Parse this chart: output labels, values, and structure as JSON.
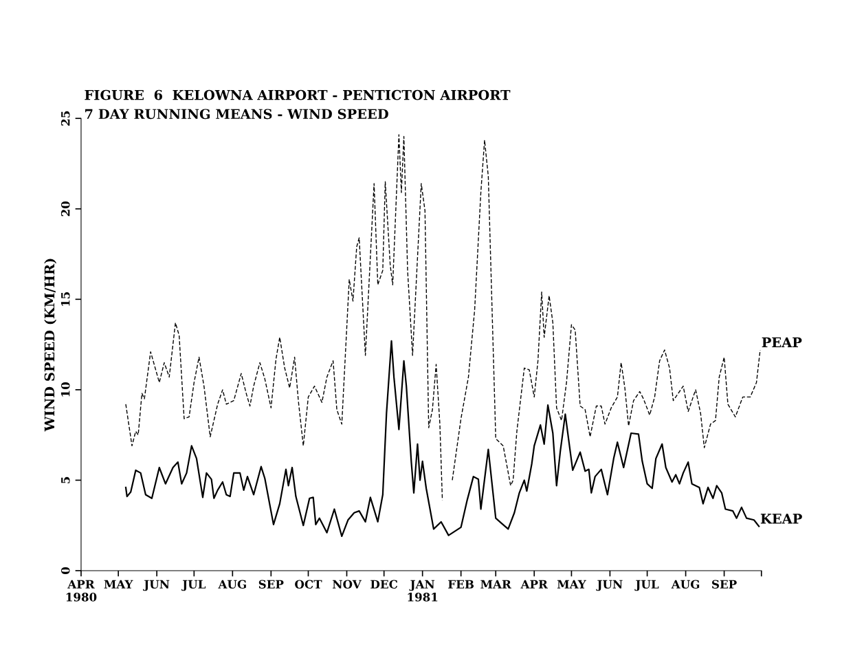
{
  "chart_data": {
    "type": "line",
    "title": "FIGURE  6  KELOWNA AIRPORT - PENTICTON AIRPORT\n7 DAY RUNNING MEANS - WIND SPEED",
    "ylabel": "WIND SPEED (KM/HR)",
    "xlim": [
      "1980-04-01",
      "1981-10-01"
    ],
    "ylim": [
      0,
      25
    ],
    "yticks": [
      0,
      5,
      10,
      15,
      20,
      25
    ],
    "xticks": [
      {
        "value": "1980-04-01",
        "label": "APR\n1980"
      },
      {
        "value": "1980-05-01",
        "label": "MAY"
      },
      {
        "value": "1980-06-01",
        "label": "JUN"
      },
      {
        "value": "1980-07-01",
        "label": "JUL"
      },
      {
        "value": "1980-08-01",
        "label": "AUG"
      },
      {
        "value": "1980-09-01",
        "label": "SEP"
      },
      {
        "value": "1980-10-01",
        "label": "OCT"
      },
      {
        "value": "1980-11-01",
        "label": "NOV"
      },
      {
        "value": "1980-12-01",
        "label": "DEC"
      },
      {
        "value": "1981-01-01",
        "label": "JAN\n1981"
      },
      {
        "value": "1981-02-01",
        "label": "FEB"
      },
      {
        "value": "1981-03-01",
        "label": "MAR"
      },
      {
        "value": "1981-04-01",
        "label": "APR"
      },
      {
        "value": "1981-05-01",
        "label": "MAY"
      },
      {
        "value": "1981-06-01",
        "label": "JUN"
      },
      {
        "value": "1981-07-01",
        "label": "JUL"
      },
      {
        "value": "1981-08-01",
        "label": "AUG"
      },
      {
        "value": "1981-09-01",
        "label": "SEP"
      },
      {
        "value": "1981-10-01",
        "label": null
      }
    ],
    "grid": false,
    "series": [
      {
        "name": "PEAP",
        "color": "#000000",
        "line_style": "dashed",
        "x": [
          "1980-05-07",
          "1980-05-12",
          "1980-05-15",
          "1980-05-17",
          "1980-05-20",
          "1980-05-22",
          "1980-05-27",
          "1980-06-03",
          "1980-06-07",
          "1980-06-11",
          "1980-06-16",
          "1980-06-19",
          "1980-06-23",
          "1980-06-27",
          "1980-07-01",
          "1980-07-05",
          "1980-07-09",
          "1980-07-14",
          "1980-07-20",
          "1980-07-24",
          "1980-07-27",
          "1980-08-02",
          "1980-08-08",
          "1980-08-12",
          "1980-08-15",
          "1980-08-18",
          "1980-08-23",
          "1980-08-27",
          "1980-09-01",
          "1980-09-05",
          "1980-09-08",
          "1980-09-12",
          "1980-09-16",
          "1980-09-20",
          "1980-09-23",
          "1980-09-27",
          "1980-10-01",
          "1980-10-06",
          "1980-10-12",
          "1980-10-16",
          "1980-10-21",
          "1980-10-24",
          "1980-10-28",
          "1980-11-03",
          "1980-11-06",
          "1980-11-09",
          "1980-11-11",
          "1980-11-16",
          "1980-11-23",
          "1980-11-26",
          "1980-11-30",
          "1980-12-02",
          "1980-12-06",
          "1980-12-08",
          "1980-12-13",
          "1980-12-15",
          "1980-12-17",
          "1980-12-20",
          "1980-12-24",
          "1980-12-31",
          "1981-01-03",
          "1981-01-06",
          "1981-01-09",
          "1981-01-12",
          "1981-01-15",
          "1981-01-17",
          "1981-01-21",
          "1981-01-25",
          "1981-02-01",
          "1981-02-07",
          "1981-02-12",
          "1981-02-17",
          "1981-02-20",
          "1981-02-23",
          "1981-03-01",
          "1981-03-07",
          "1981-03-13",
          "1981-03-15",
          "1981-03-18",
          "1981-03-24",
          "1981-03-28",
          "1981-04-01",
          "1981-04-04",
          "1981-04-07",
          "1981-04-09",
          "1981-04-13",
          "1981-04-16",
          "1981-04-19",
          "1981-04-23",
          "1981-04-27",
          "1981-05-01",
          "1981-05-04",
          "1981-05-08",
          "1981-05-12",
          "1981-05-16",
          "1981-05-21",
          "1981-05-25",
          "1981-05-28",
          "1981-06-02",
          "1981-06-07",
          "1981-06-10",
          "1981-06-13",
          "1981-06-16",
          "1981-06-20",
          "1981-06-25",
          "1981-06-28",
          "1981-07-03",
          "1981-07-07",
          "1981-07-11",
          "1981-07-15",
          "1981-07-19",
          "1981-07-22",
          "1981-07-30",
          "1981-08-03",
          "1981-08-09",
          "1981-08-13",
          "1981-08-16",
          "1981-08-21",
          "1981-08-25",
          "1981-08-28",
          "1981-09-01",
          "1981-09-04",
          "1981-09-10",
          "1981-09-16",
          "1981-09-22",
          "1981-09-27",
          "1981-09-30"
        ],
        "values": [
          9.2,
          6.9,
          7.7,
          7.5,
          9.8,
          9.5,
          12.1,
          10.4,
          11.5,
          10.7,
          13.7,
          13.0,
          8.4,
          8.5,
          10.4,
          11.8,
          10.2,
          7.4,
          9.2,
          10.0,
          9.2,
          9.4,
          10.9,
          9.8,
          9.1,
          10.2,
          11.5,
          10.6,
          9.0,
          11.7,
          12.9,
          11.2,
          10.1,
          11.8,
          9.4,
          6.9,
          9.6,
          10.2,
          9.3,
          10.7,
          11.6,
          8.9,
          8.1,
          16.1,
          14.9,
          17.9,
          18.4,
          11.9,
          21.4,
          15.8,
          16.6,
          21.5,
          16.9,
          15.8,
          24.1,
          20.9,
          24.0,
          16.6,
          11.9,
          21.4,
          19.9,
          7.9,
          8.9,
          11.4,
          8.1,
          3.9,
          null,
          5.0,
          8.4,
          10.7,
          14.4,
          20.9,
          23.8,
          21.8,
          7.3,
          6.9,
          4.7,
          5.0,
          7.7,
          11.2,
          11.1,
          9.6,
          11.6,
          15.4,
          12.9,
          15.2,
          13.7,
          9.0,
          8.3,
          10.4,
          13.6,
          13.3,
          9.1,
          8.9,
          7.4,
          9.1,
          9.1,
          8.1,
          9.0,
          9.6,
          11.5,
          10.1,
          8.0,
          9.4,
          9.9,
          9.5,
          8.6,
          9.6,
          11.6,
          12.2,
          11.2,
          9.4,
          10.2,
          8.8,
          10.0,
          8.7,
          6.8,
          8.1,
          8.3,
          10.7,
          11.8,
          9.2,
          8.5,
          9.6,
          9.6,
          10.4,
          12.2
        ]
      },
      {
        "name": "KEAP",
        "color": "#000000",
        "line_style": "solid",
        "x": [
          "1980-05-07",
          "1980-05-08",
          "1980-05-11",
          "1980-05-15",
          "1980-05-19",
          "1980-05-23",
          "1980-05-28",
          "1980-06-03",
          "1980-06-08",
          "1980-06-14",
          "1980-06-18",
          "1980-06-21",
          "1980-06-25",
          "1980-06-29",
          "1980-07-03",
          "1980-07-08",
          "1980-07-11",
          "1980-07-15",
          "1980-07-17",
          "1980-07-20",
          "1980-07-24",
          "1980-07-27",
          "1980-07-30",
          "1980-08-02",
          "1980-08-07",
          "1980-08-10",
          "1980-08-13",
          "1980-08-18",
          "1980-08-24",
          "1980-08-27",
          "1980-09-03",
          "1980-09-08",
          "1980-09-13",
          "1980-09-15",
          "1980-09-18",
          "1980-09-21",
          "1980-09-27",
          "1980-10-02",
          "1980-10-05",
          "1980-10-07",
          "1980-10-10",
          "1980-10-16",
          "1980-10-22",
          "1980-10-28",
          "1980-11-02",
          "1980-11-07",
          "1980-11-11",
          "1980-11-16",
          "1980-11-20",
          "1980-11-26",
          "1980-11-30",
          "1980-12-03",
          "1980-12-07",
          "1980-12-09",
          "1980-12-13",
          "1980-12-17",
          "1980-12-19",
          "1980-12-23",
          "1980-12-25",
          "1980-12-28",
          "1980-12-30",
          "1981-01-01",
          "1981-01-04",
          "1981-01-10",
          "1981-01-16",
          "1981-01-22",
          "1981-02-01",
          "1981-02-06",
          "1981-02-11",
          "1981-02-15",
          "1981-02-17",
          "1981-02-23",
          "1981-03-01",
          "1981-03-06",
          "1981-03-11",
          "1981-03-16",
          "1981-03-20",
          "1981-03-24",
          "1981-03-26",
          "1981-03-30",
          "1981-04-01",
          "1981-04-06",
          "1981-04-09",
          "1981-04-12",
          "1981-04-16",
          "1981-04-19",
          "1981-04-22",
          "1981-04-26",
          "1981-05-02",
          "1981-05-08",
          "1981-05-12",
          "1981-05-15",
          "1981-05-17",
          "1981-05-20",
          "1981-05-25",
          "1981-05-30",
          "1981-06-04",
          "1981-06-07",
          "1981-06-12",
          "1981-06-18",
          "1981-06-24",
          "1981-06-27",
          "1981-07-01",
          "1981-07-05",
          "1981-07-08",
          "1981-07-13",
          "1981-07-16",
          "1981-07-21",
          "1981-07-24",
          "1981-07-27",
          "1981-07-30",
          "1981-08-03",
          "1981-08-06",
          "1981-08-12",
          "1981-08-15",
          "1981-08-19",
          "1981-08-23",
          "1981-08-26",
          "1981-08-30",
          "1981-09-02",
          "1981-09-08",
          "1981-09-11",
          "1981-09-15",
          "1981-09-19",
          "1981-09-25",
          "1981-09-29"
        ],
        "values": [
          4.6,
          4.1,
          4.35,
          5.55,
          5.4,
          4.2,
          4.0,
          5.7,
          4.8,
          5.7,
          6.0,
          4.8,
          5.4,
          6.9,
          6.2,
          4.05,
          5.4,
          5.05,
          4.0,
          4.45,
          4.9,
          4.2,
          4.1,
          5.4,
          5.4,
          4.45,
          5.2,
          4.2,
          5.75,
          5.1,
          2.55,
          3.7,
          5.6,
          4.7,
          5.7,
          4.1,
          2.5,
          4.0,
          4.05,
          2.55,
          2.9,
          2.1,
          3.4,
          1.9,
          2.8,
          3.2,
          3.3,
          2.7,
          4.05,
          2.7,
          4.2,
          8.7,
          12.7,
          10.7,
          7.8,
          11.6,
          10.2,
          6.0,
          4.3,
          7.0,
          5.0,
          6.05,
          4.55,
          2.3,
          2.7,
          1.95,
          2.4,
          3.9,
          5.2,
          5.05,
          3.4,
          6.7,
          2.9,
          2.6,
          2.3,
          3.2,
          4.3,
          5.0,
          4.4,
          5.9,
          6.9,
          8.05,
          7.0,
          9.15,
          7.6,
          4.7,
          6.6,
          8.65,
          5.55,
          6.55,
          5.5,
          5.6,
          4.3,
          5.2,
          5.6,
          4.2,
          6.2,
          7.1,
          5.7,
          7.6,
          7.55,
          6.05,
          4.8,
          4.55,
          6.2,
          7.0,
          5.7,
          4.9,
          5.3,
          4.8,
          5.4,
          6.0,
          4.8,
          4.6,
          3.7,
          4.6,
          4.0,
          4.7,
          4.3,
          3.4,
          3.3,
          2.9,
          3.5,
          2.9,
          2.8,
          2.45
        ]
      }
    ]
  }
}
